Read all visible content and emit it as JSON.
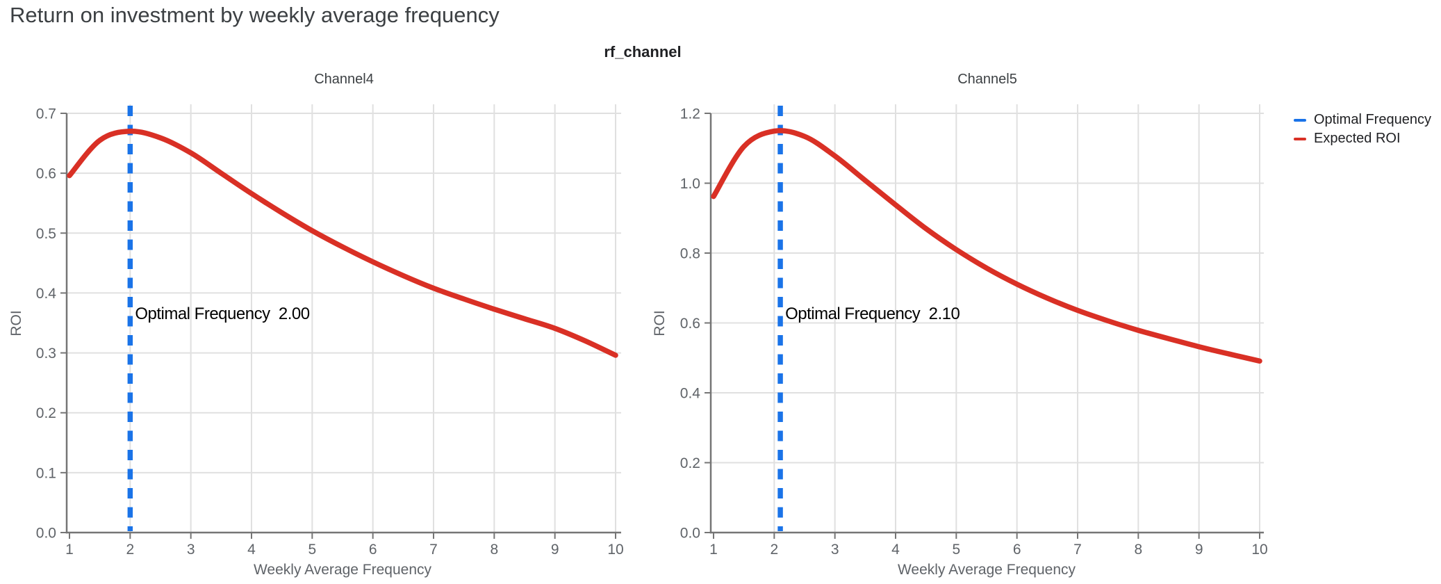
{
  "page": {
    "title": "Return on investment by weekly average frequency",
    "facet_group_title": "rf_channel"
  },
  "legend": {
    "position": "top-right",
    "items": [
      {
        "label": "Optimal Frequency",
        "color": "#1a73e8"
      },
      {
        "label": "Expected ROI",
        "color": "#d93025"
      }
    ]
  },
  "colors": {
    "expected_roi_line": "#d93025",
    "optimal_frequency_line": "#1a73e8",
    "gridline": "#e0e0e0",
    "axis": "#757575",
    "tick_label": "#5f6368",
    "annotation_text": "#000000"
  },
  "chart_data": [
    {
      "type": "line",
      "title": "Channel4",
      "xlabel": "Weekly Average Frequency",
      "ylabel": "ROI",
      "xlim": [
        1,
        10
      ],
      "ylim": [
        0.0,
        0.7
      ],
      "grid": true,
      "xticks": [
        1,
        2,
        3,
        4,
        5,
        6,
        7,
        8,
        9,
        10
      ],
      "xtick_labels": [
        "1",
        "2",
        "3",
        "4",
        "5",
        "6",
        "7",
        "8",
        "9",
        "10"
      ],
      "yticks": [
        0.0,
        0.1,
        0.2,
        0.3,
        0.4,
        0.5,
        0.6,
        0.7
      ],
      "ytick_labels": [
        "0.0",
        "0.1",
        "0.2",
        "0.3",
        "0.4",
        "0.5",
        "0.6",
        "0.7"
      ],
      "series": [
        {
          "name": "Expected ROI",
          "color": "#d93025",
          "x": [
            1,
            1.5,
            2,
            2.5,
            3,
            3.5,
            4,
            4.5,
            5,
            5.5,
            6,
            6.5,
            7,
            7.5,
            8,
            8.5,
            9,
            9.5,
            10
          ],
          "y": [
            0.596,
            0.655,
            0.67,
            0.659,
            0.634,
            0.6,
            0.566,
            0.534,
            0.504,
            0.477,
            0.452,
            0.429,
            0.408,
            0.39,
            0.373,
            0.357,
            0.341,
            0.32,
            0.296
          ]
        }
      ],
      "vline": {
        "name": "Optimal Frequency",
        "x": 2.0,
        "color": "#1a73e8",
        "style": "dashed"
      },
      "annotation": {
        "text": "Optimal Frequency  2.00"
      }
    },
    {
      "type": "line",
      "title": "Channel5",
      "xlabel": "Weekly Average Frequency",
      "ylabel": "ROI",
      "xlim": [
        1,
        10
      ],
      "ylim": [
        0.0,
        1.2
      ],
      "grid": true,
      "xticks": [
        1,
        2,
        3,
        4,
        5,
        6,
        7,
        8,
        9,
        10
      ],
      "xtick_labels": [
        "1",
        "2",
        "3",
        "4",
        "5",
        "6",
        "7",
        "8",
        "9",
        "10"
      ],
      "yticks": [
        0.0,
        0.2,
        0.4,
        0.6,
        0.8,
        1.0,
        1.2
      ],
      "ytick_labels": [
        "0.0",
        "0.2",
        "0.4",
        "0.6",
        "0.8",
        "1.0",
        "1.2"
      ],
      "series": [
        {
          "name": "Expected ROI",
          "color": "#d93025",
          "x": [
            1,
            1.5,
            2,
            2.5,
            3,
            3.5,
            4,
            4.5,
            5,
            5.5,
            6,
            6.5,
            7,
            7.5,
            8,
            8.5,
            9,
            9.5,
            10
          ],
          "y": [
            0.962,
            1.105,
            1.149,
            1.134,
            1.078,
            1.008,
            0.938,
            0.87,
            0.81,
            0.757,
            0.711,
            0.671,
            0.636,
            0.606,
            0.579,
            0.555,
            0.532,
            0.511,
            0.491
          ]
        }
      ],
      "vline": {
        "name": "Optimal Frequency",
        "x": 2.1,
        "color": "#1a73e8",
        "style": "dashed"
      },
      "annotation": {
        "text": "Optimal Frequency  2.10"
      }
    }
  ]
}
